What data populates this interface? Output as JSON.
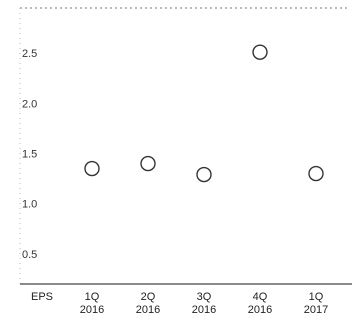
{
  "chart_data": {
    "type": "scatter",
    "row_label": "EPS",
    "categories": [
      {
        "quarter": "1Q",
        "year": "2016"
      },
      {
        "quarter": "2Q",
        "year": "2016"
      },
      {
        "quarter": "3Q",
        "year": "2016"
      },
      {
        "quarter": "4Q",
        "year": "2016"
      },
      {
        "quarter": "1Q",
        "year": "2017"
      }
    ],
    "values": [
      1.35,
      1.4,
      1.29,
      2.51,
      1.3
    ],
    "yticks": [
      "0.5",
      "1.0",
      "1.5",
      "2.0",
      "2.5"
    ],
    "ylim": [
      0.2,
      2.95
    ],
    "grid": false,
    "marker": "hollow-circle",
    "colors": {
      "marker": "#333333",
      "axis": "#444444",
      "text": "#222222"
    }
  }
}
